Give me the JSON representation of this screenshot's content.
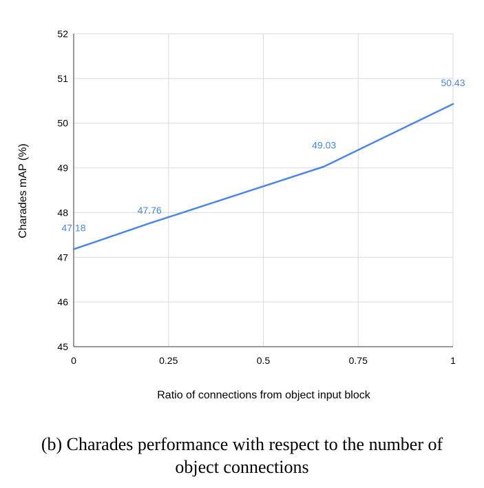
{
  "chart_data": {
    "type": "line",
    "title": "",
    "xlabel": "Ratio of connections from object input block",
    "ylabel": "Charades mAP (%)",
    "xlim": [
      0,
      1
    ],
    "ylim": [
      45,
      52
    ],
    "x_ticks": [
      "0",
      "0.25",
      "0.5",
      "0.75",
      "1"
    ],
    "y_ticks": [
      "45",
      "46",
      "47",
      "48",
      "49",
      "50",
      "51",
      "52"
    ],
    "grid": true,
    "series": [
      {
        "name": "Charades mAP",
        "color": "#4a86e8",
        "x": [
          0,
          0.2,
          0.66,
          1
        ],
        "y": [
          47.18,
          47.76,
          49.03,
          50.43
        ],
        "labels": [
          "47.18",
          "47.76",
          "49.03",
          "50.43"
        ]
      }
    ]
  },
  "caption": {
    "line1": "(b) Charades performance with respect to the number of",
    "line2": "object connections"
  }
}
